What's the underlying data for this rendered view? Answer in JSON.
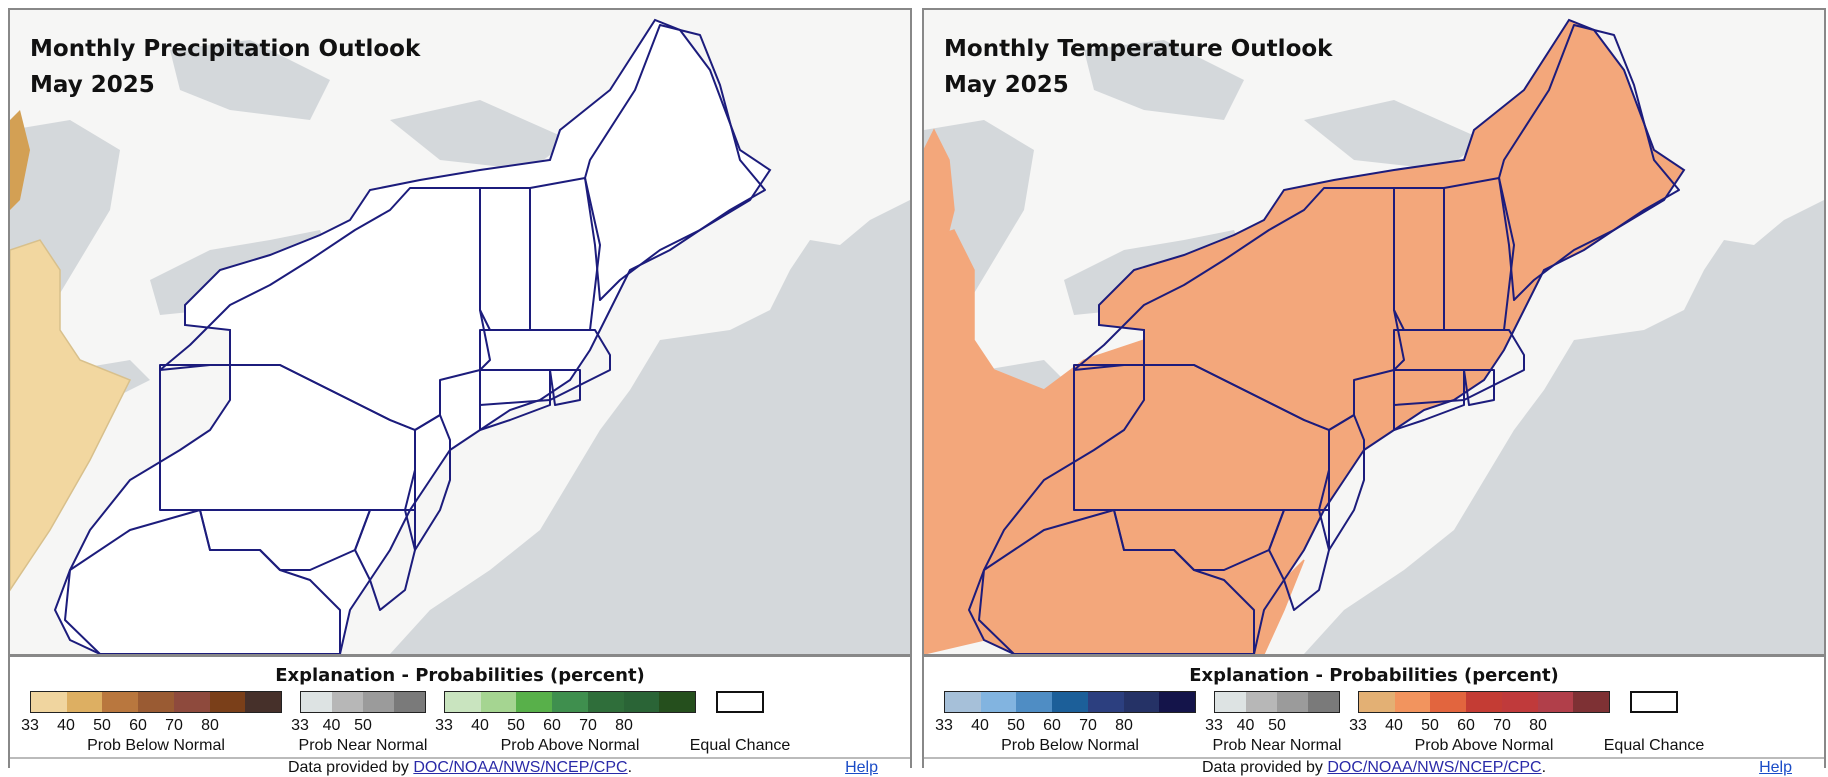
{
  "panels": [
    {
      "title": "Monthly Precipitation Outlook",
      "subtitle": "May 2025",
      "outlook_fill": "#ffffff",
      "anomaly_colors": [
        "#f2d7a0",
        "#d3a054",
        "#d8c08c"
      ],
      "legend": {
        "title": "Explanation - Probabilities (percent)",
        "below": {
          "caption": "Prob Below Normal",
          "colors": [
            "#f0d59f",
            "#ddaf62",
            "#b9773e",
            "#9a5b33",
            "#8e4a3d",
            "#7a3f19",
            "#46302a"
          ],
          "ticks": [
            "33",
            "40",
            "50",
            "60",
            "70",
            "80"
          ]
        },
        "near": {
          "caption": "Prob Near Normal",
          "colors": [
            "#dde3e3",
            "#b7b7b7",
            "#9b9b9b",
            "#7a7a7a"
          ],
          "ticks": [
            "33",
            "40",
            "50"
          ]
        },
        "above": {
          "caption": "Prob Above Normal",
          "colors": [
            "#c9e4bf",
            "#a5d591",
            "#58b04a",
            "#3f8f4e",
            "#2f6e3a",
            "#2a6436",
            "#254f1d"
          ],
          "ticks": [
            "33",
            "40",
            "50",
            "60",
            "70",
            "80"
          ]
        },
        "equal": "Equal Chance"
      },
      "credit_prefix": "Data provided by ",
      "credit_link": "DOC/NOAA/NWS/NCEP/CPC",
      "credit_suffix": ".",
      "help": "Help"
    },
    {
      "title": "Monthly Temperature Outlook",
      "subtitle": "May 2025",
      "outlook_fill": "#f3a77b",
      "anomaly_colors": [
        "#f3a77b"
      ],
      "legend": {
        "title": "Explanation - Probabilities (percent)",
        "below": {
          "caption": "Prob Below Normal",
          "colors": [
            "#a6c0d9",
            "#82b4e0",
            "#4f8dc4",
            "#1c5f99",
            "#2c3f7f",
            "#253266",
            "#14144a"
          ],
          "ticks": [
            "33",
            "40",
            "50",
            "60",
            "70",
            "80"
          ]
        },
        "near": {
          "caption": "Prob Near Normal",
          "colors": [
            "#dde3e3",
            "#b7b7b7",
            "#9b9b9b",
            "#7a7a7a"
          ],
          "ticks": [
            "33",
            "40",
            "50"
          ]
        },
        "above": {
          "caption": "Prob Above Normal",
          "colors": [
            "#e3b074",
            "#f2945e",
            "#e2653e",
            "#c43c34",
            "#c03a3b",
            "#b13f4a",
            "#7e3134"
          ],
          "ticks": [
            "33",
            "40",
            "50",
            "60",
            "70",
            "80"
          ]
        },
        "equal": "Equal Chance"
      },
      "credit_prefix": "Data provided by ",
      "credit_link": "DOC/NOAA/NWS/NCEP/CPC",
      "credit_suffix": ".",
      "help": "Help"
    }
  ],
  "colors": {
    "land": "#f6f6f5",
    "water": "#d4d8db",
    "state_border": "#1c1c7c"
  }
}
